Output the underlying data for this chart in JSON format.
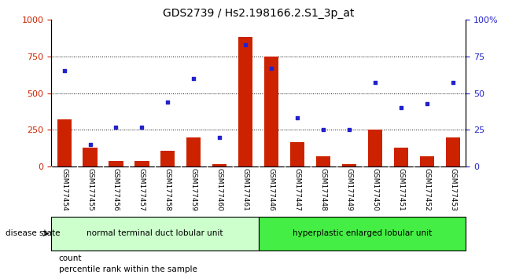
{
  "title": "GDS2739 / Hs2.198166.2.S1_3p_at",
  "categories": [
    "GSM177454",
    "GSM177455",
    "GSM177456",
    "GSM177457",
    "GSM177458",
    "GSM177459",
    "GSM177460",
    "GSM177461",
    "GSM177446",
    "GSM177447",
    "GSM177448",
    "GSM177449",
    "GSM177450",
    "GSM177451",
    "GSM177452",
    "GSM177453"
  ],
  "bar_values": [
    320,
    130,
    40,
    40,
    110,
    200,
    20,
    880,
    750,
    170,
    70,
    20,
    255,
    130,
    70,
    200
  ],
  "scatter_values": [
    65,
    15,
    27,
    27,
    44,
    60,
    20,
    83,
    67,
    33,
    25,
    25,
    57,
    40,
    43,
    57
  ],
  "bar_color": "#cc2200",
  "scatter_color": "#2222cc",
  "ylim_left": [
    0,
    1000
  ],
  "ylim_right": [
    0,
    100
  ],
  "yticks_left": [
    0,
    250,
    500,
    750,
    1000
  ],
  "ytick_labels_left": [
    "0",
    "250",
    "500",
    "750",
    "1000"
  ],
  "yticks_right": [
    0,
    25,
    50,
    75,
    100
  ],
  "ytick_labels_right": [
    "0",
    "25",
    "50",
    "75",
    "100%"
  ],
  "group1_label": "normal terminal duct lobular unit",
  "group2_label": "hyperplastic enlarged lobular unit",
  "group1_count": 8,
  "group2_count": 8,
  "disease_state_label": "disease state",
  "legend_count_label": "count",
  "legend_percentile_label": "percentile rank within the sample",
  "bg_color": "#ffffff",
  "tick_area_color": "#c8c8c8",
  "group1_color": "#ccffcc",
  "group2_color": "#44ee44",
  "title_fontsize": 10,
  "tick_label_fontsize": 6.5,
  "axis_label_fontsize": 8
}
